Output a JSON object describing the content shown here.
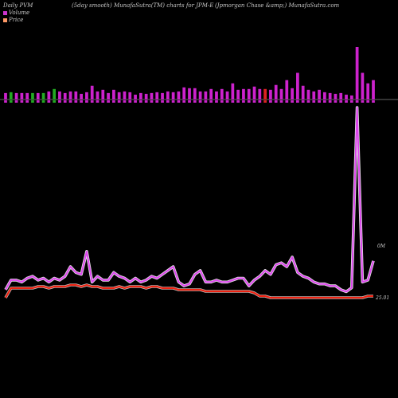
{
  "header": {
    "left": "Daily PVM",
    "middle": "(5day smooth) MunafaSutra(TM) charts for JPM-E",
    "right": "(Jpmorgan  Chase  &amp;) MunafaSutra.com"
  },
  "legend": {
    "volume_label": "Volume",
    "volume_color": "#cc33cc",
    "price_label": "Price",
    "price_color": "#ff9966"
  },
  "chart_data": [
    {
      "type": "bar",
      "name": "volume-bars",
      "colors": {
        "up": "#cc22cc",
        "down": "#dd2222",
        "tiny": "#22aa22"
      },
      "values": [
        8,
        9,
        8,
        8,
        8,
        8,
        8,
        8,
        10,
        13,
        10,
        8,
        10,
        10,
        7,
        9,
        17,
        10,
        12,
        8,
        12,
        9,
        10,
        9,
        6,
        8,
        7,
        8,
        9,
        8,
        10,
        9,
        10,
        15,
        14,
        14,
        10,
        10,
        13,
        10,
        13,
        10,
        20,
        12,
        13,
        13,
        16,
        13,
        13,
        12,
        18,
        13,
        24,
        14,
        33,
        17,
        12,
        10,
        12,
        9,
        8,
        7,
        8,
        6,
        5,
        65,
        33,
        20,
        24
      ],
      "colors_per_bar": [
        "up",
        "tiny",
        "up",
        "up",
        "up",
        "tiny",
        "up",
        "tiny",
        "up",
        "tiny",
        "up",
        "up",
        "up",
        "up",
        "up",
        "up",
        "up",
        "up",
        "up",
        "up",
        "up",
        "up",
        "up",
        "up",
        "up",
        "up",
        "up",
        "up",
        "up",
        "up",
        "up",
        "up",
        "up",
        "up",
        "up",
        "up",
        "up",
        "up",
        "up",
        "up",
        "up",
        "up",
        "up",
        "up",
        "up",
        "up",
        "up",
        "up",
        "down",
        "up",
        "up",
        "up",
        "up",
        "up",
        "up",
        "up",
        "up",
        "up",
        "up",
        "up",
        "up",
        "up",
        "up",
        "up",
        "up",
        "up",
        "up",
        "up",
        "up"
      ]
    },
    {
      "type": "line",
      "name": "volume-smooth",
      "color": "#dd44ee",
      "values": [
        5,
        10,
        10,
        9,
        11,
        12,
        10,
        11,
        9,
        11,
        10,
        12,
        17,
        14,
        13,
        25,
        9,
        12,
        10,
        10,
        14,
        12,
        11,
        9,
        11,
        9,
        10,
        12,
        11,
        13,
        15,
        17,
        9,
        7,
        8,
        13,
        15,
        9,
        9,
        10,
        9,
        9,
        10,
        11,
        11,
        7,
        10,
        12,
        15,
        13,
        18,
        19,
        17,
        22,
        14,
        12,
        11,
        9,
        8,
        8,
        7,
        7,
        5,
        4,
        6,
        100,
        9,
        10,
        20
      ],
      "annotation": "0M"
    },
    {
      "type": "line",
      "name": "price",
      "color": "#ee2211",
      "values": [
        25.0,
        25.06,
        25.06,
        25.06,
        25.06,
        25.06,
        25.07,
        25.07,
        25.06,
        25.07,
        25.07,
        25.07,
        25.08,
        25.08,
        25.07,
        25.08,
        25.07,
        25.07,
        25.06,
        25.06,
        25.06,
        25.07,
        25.06,
        25.07,
        25.07,
        25.07,
        25.06,
        25.07,
        25.07,
        25.06,
        25.06,
        25.06,
        25.05,
        25.05,
        25.05,
        25.05,
        25.05,
        25.04,
        25.04,
        25.04,
        25.04,
        25.04,
        25.04,
        25.04,
        25.04,
        25.04,
        25.03,
        25.01,
        25.01,
        25.0,
        25.0,
        25.0,
        25.0,
        25.0,
        25.0,
        25.0,
        25.0,
        25.0,
        25.0,
        25.0,
        25.0,
        25.0,
        25.0,
        25.0,
        25.0,
        25.0,
        25.0,
        25.01,
        25.01
      ],
      "annotation": "25.01"
    }
  ]
}
